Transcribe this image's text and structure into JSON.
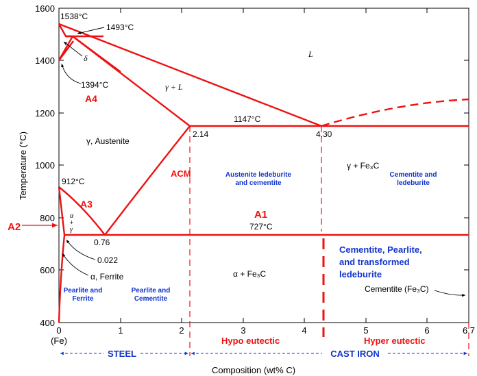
{
  "axes": {
    "y_label": "Temperature (°C)",
    "x_label": "Composition (wt% C)",
    "y_ticks": [
      "400",
      "600",
      "800",
      "1000",
      "1200",
      "1400",
      "1600"
    ],
    "x_ticks": [
      "0",
      "1",
      "2",
      "3",
      "4",
      "5",
      "6",
      "6.7"
    ],
    "x_origin_note": "(Fe)"
  },
  "points": {
    "t1538": "1538°C",
    "t1493": "1493°C",
    "t1394": "1394°C",
    "t1147": "1147°C",
    "t912": "912°C",
    "t727": "727°C",
    "c214": "2.14",
    "c430": "4.30",
    "c076": "0.76",
    "c0022": "0.022"
  },
  "phases": {
    "liquid": "L",
    "delta": "δ",
    "gamma_l": "γ + L",
    "austenite": "γ, Austenite",
    "gamma_fe3c": "γ + Fe₃C",
    "alpha_fe3c": "α + Fe₃C",
    "ferrite": "α, Ferrite",
    "alpha_small": "α",
    "plus_small": "+",
    "gamma_small": "γ",
    "cementite_right": "Cementite (Fe₃C)"
  },
  "critical_lines": {
    "a1": "A1",
    "a2": "A2",
    "a3": "A3",
    "a4": "A4",
    "acm": "ACM"
  },
  "regions": {
    "aust_led_line1": "Austenite ledeburite",
    "aust_led_line2": "and cementite",
    "cem_led_line1": "Cementite and",
    "cem_led_line2": "ledeburite",
    "cem_pearl_line1": "Cementite, Pearlite,",
    "cem_pearl_line2": "and transformed",
    "cem_pearl_line3": "ledeburite",
    "pearl_ferr_line1": "Pearlite and",
    "pearl_ferr_line2": "Ferrite",
    "pearl_cem_line1": "Pearlite and",
    "pearl_cem_line2": "Cementite"
  },
  "bottom": {
    "hypo": "Hypo eutectic",
    "hyper": "Hyper eutectic",
    "steel": "STEEL",
    "cast_iron": "CAST IRON"
  },
  "colors": {
    "red": "#ee1111",
    "blue": "#1133cc",
    "black": "#000000"
  }
}
